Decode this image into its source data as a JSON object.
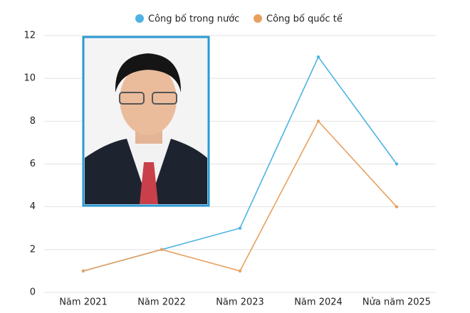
{
  "chart_data": {
    "type": "line",
    "categories": [
      "Năm 2021",
      "Năm 2022",
      "Năm 2023",
      "Năm 2024",
      "Nửa năm 2025"
    ],
    "series": [
      {
        "name": "Công bố trong nước",
        "color": "#4db3e3",
        "values": [
          1,
          2,
          3,
          11,
          6
        ]
      },
      {
        "name": "Công bố quốc tế",
        "color": "#e8a060",
        "values": [
          1,
          2,
          1,
          8,
          4
        ]
      }
    ],
    "ylim": [
      0,
      12
    ],
    "yticks": [
      0,
      2,
      4,
      6,
      8,
      10,
      12
    ],
    "grid": true,
    "legend": "top"
  }
}
